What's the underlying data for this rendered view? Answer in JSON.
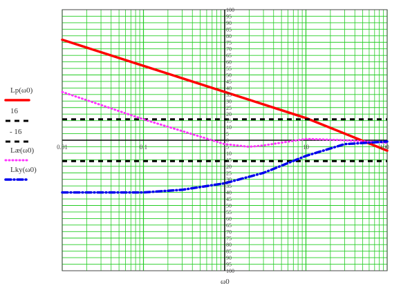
{
  "chart_data": {
    "type": "line",
    "xscale": "log",
    "xlim": [
      0.01,
      100
    ],
    "ylim": [
      -100,
      100
    ],
    "grid": true,
    "xlabel": "ω0",
    "x_tick_labels": [
      "0.01",
      "0.1",
      "1",
      "10",
      "100"
    ],
    "y_tick_labels_top": [
      "100",
      "95",
      "90",
      "85",
      "80",
      "75",
      "70",
      "65",
      "60",
      "55",
      "50",
      "45",
      "40",
      "35",
      "30",
      "25",
      "20",
      "15",
      "10",
      "5",
      "0"
    ],
    "y_tick_labels_bottom": [
      "5",
      "10",
      "15",
      "20",
      "25",
      "30",
      "35",
      "40",
      "45",
      "50",
      "55",
      "60",
      "65",
      "70",
      "75",
      "80",
      "85",
      "90",
      "95",
      "100"
    ],
    "series": [
      {
        "name": "Lp(ω0)",
        "color": "#ff0000",
        "style": "solid",
        "x": [
          0.01,
          0.1,
          1,
          10,
          100
        ],
        "y": [
          77,
          57,
          37,
          17,
          -8
        ]
      },
      {
        "name": "16",
        "color": "#000000",
        "style": "dashed",
        "x": [
          0.01,
          100
        ],
        "y": [
          16,
          16
        ]
      },
      {
        "name": "- 16",
        "color": "#000000",
        "style": "dashed",
        "x": [
          0.01,
          100
        ],
        "y": [
          -16,
          -16
        ]
      },
      {
        "name": "Læ(ω0)",
        "color": "#ff33ff",
        "style": "dotted",
        "x": [
          0.01,
          0.03,
          0.1,
          0.3,
          1,
          2,
          3,
          10,
          30,
          100
        ],
        "y": [
          37,
          27,
          16,
          7,
          -3,
          -5,
          -4,
          1,
          0,
          -2
        ]
      },
      {
        "name": "Lky(ω0)",
        "color": "#0000ee",
        "style": "dashdot",
        "x": [
          0.01,
          0.03,
          0.1,
          0.3,
          1,
          3,
          10,
          30,
          100
        ],
        "y": [
          -40,
          -40,
          -40,
          -38,
          -33,
          -25,
          -12,
          -3,
          -1
        ]
      }
    ]
  }
}
